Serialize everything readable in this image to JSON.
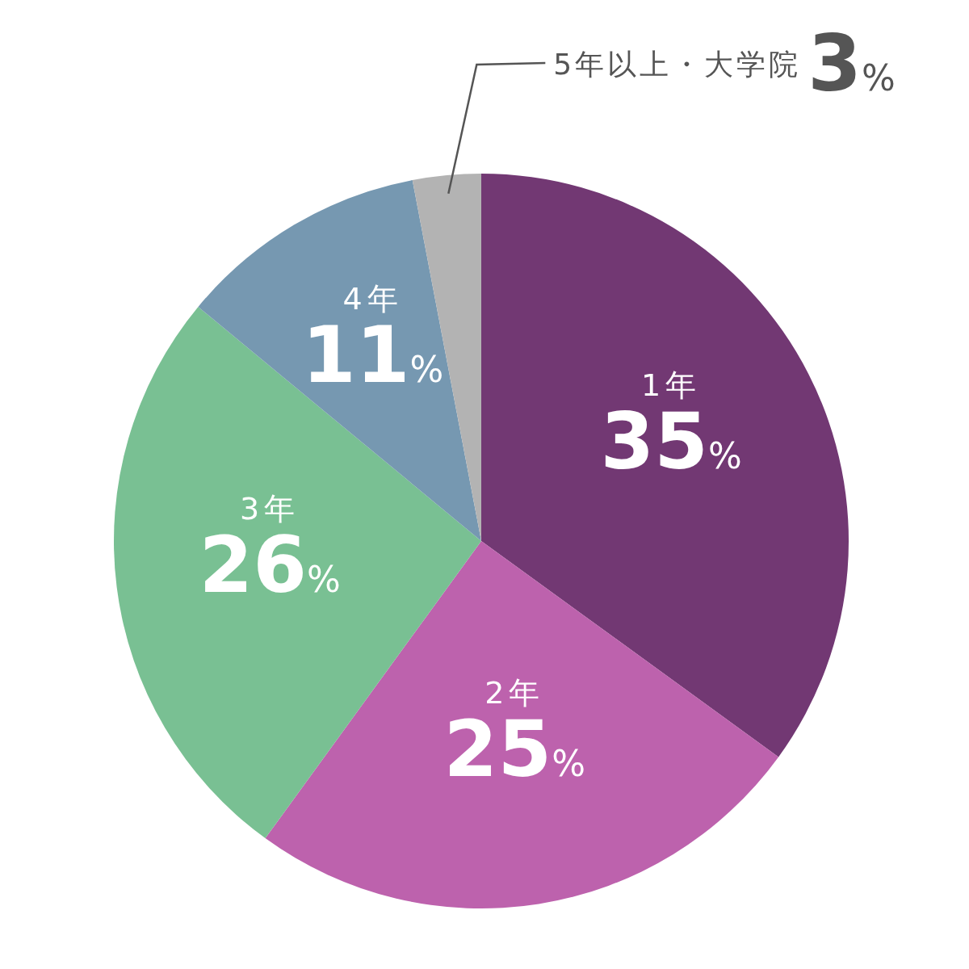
{
  "chart_data": {
    "type": "pie",
    "categories": [
      "1年",
      "2年",
      "3年",
      "4年",
      "5年以上・大学院"
    ],
    "values": [
      35,
      25,
      26,
      11,
      3
    ],
    "colors": [
      "#723873",
      "#bd62ad",
      "#79c093",
      "#7698b1",
      "#b3b3b3"
    ],
    "value_labels": [
      "35%",
      "25%",
      "26%",
      "11%",
      "3%"
    ]
  }
}
